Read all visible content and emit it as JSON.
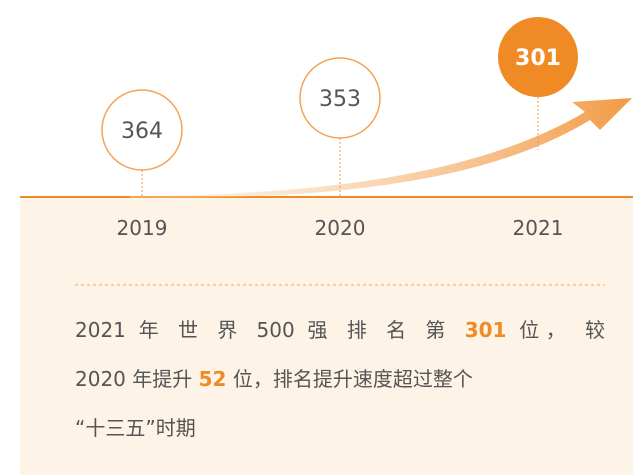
{
  "timeline": {
    "nodes": [
      {
        "year": "2019",
        "rank": "364"
      },
      {
        "year": "2020",
        "rank": "353"
      },
      {
        "year": "2021",
        "rank": "301"
      }
    ]
  },
  "paragraph": {
    "lines": [
      [
        "2021 年 世 界 500 强 排 名 第 ",
        "301",
        " 位， 较"
      ],
      [
        "2020 年提升 ",
        "52",
        " 位，排名提升速度超过整个"
      ],
      [
        "“十三五”时期"
      ]
    ]
  }
}
